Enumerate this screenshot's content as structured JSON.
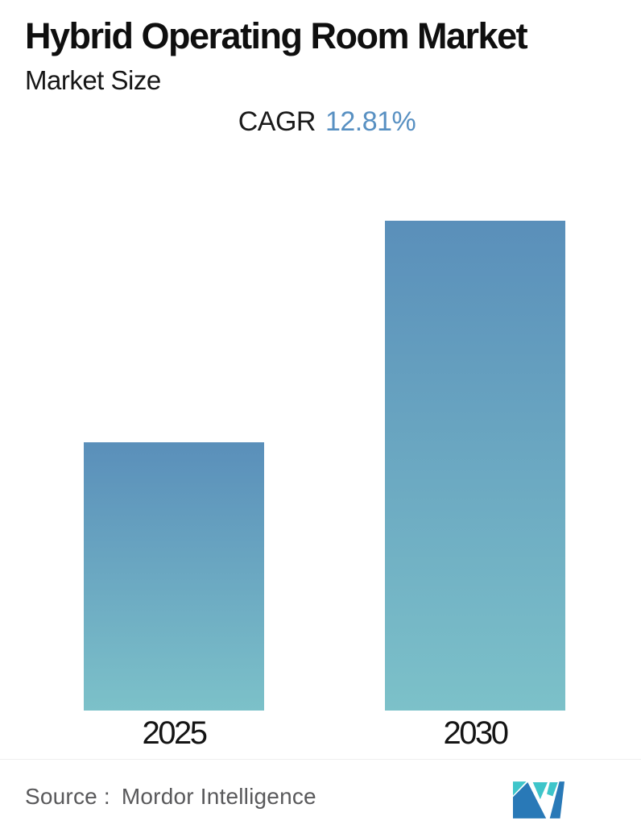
{
  "header": {
    "title": "Hybrid Operating Room Market",
    "subtitle": "Market Size",
    "cagr_label": "CAGR",
    "cagr_value": "12.81%"
  },
  "chart_data": {
    "type": "bar",
    "title": "Hybrid Operating Room Market",
    "subtitle": "Market Size",
    "cagr": "12.81%",
    "categories": [
      "2025",
      "2030"
    ],
    "values": [
      100,
      182.6
    ],
    "value_units": "relative index (no numeric axis shown in chart); 2025 = 100",
    "xlabel": "",
    "ylabel": "",
    "grid": false,
    "legend": false,
    "bar_gradient": {
      "top": "#5a8fba",
      "bottom": "#7cc1c9"
    }
  },
  "footer": {
    "source_label": "Source :",
    "source_value": "Mordor Intelligence",
    "logo_name": "mordor-intelligence-logo"
  },
  "colors": {
    "background": "#ffffff",
    "title_text": "#0f0f0f",
    "accent_blue": "#5890c2",
    "bar_top": "#5a8fba",
    "bar_bottom": "#7cc1c9",
    "source_gray": "#59595b",
    "divider": "#efefef",
    "logo_blue": "#2979b7",
    "logo_teal": "#3ec5ca"
  }
}
